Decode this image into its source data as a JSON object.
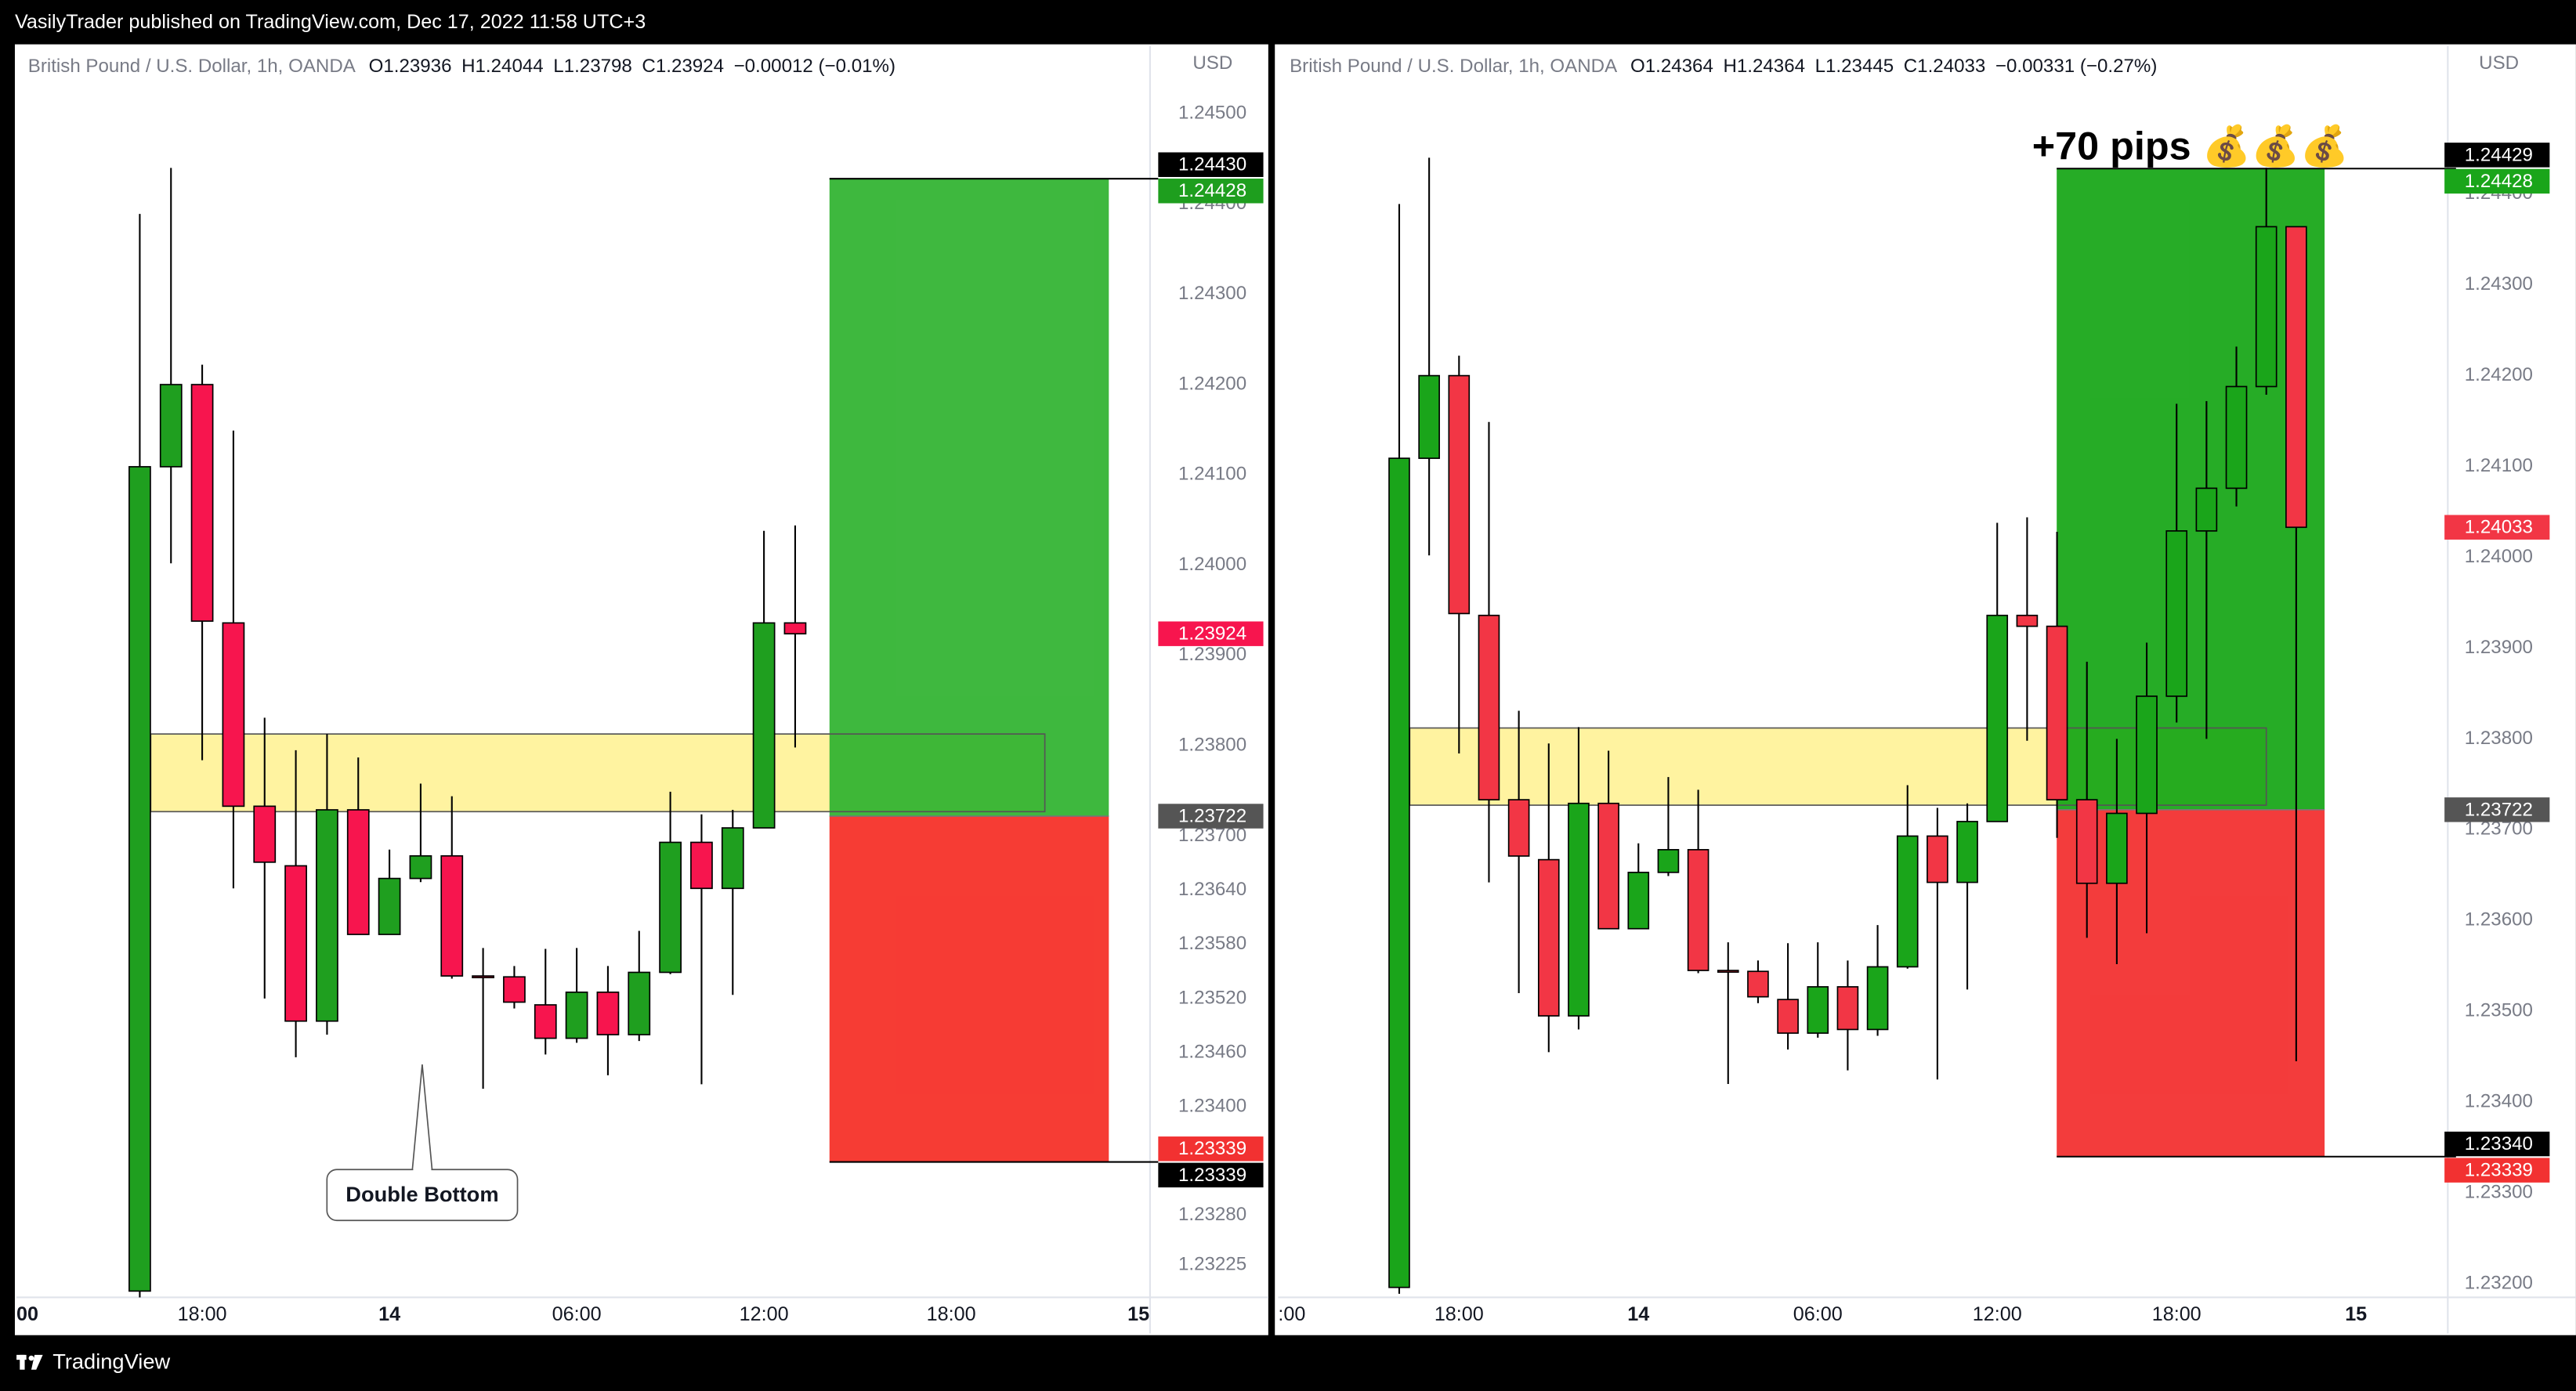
{
  "header": {
    "attribution": "VasilyTrader published on TradingView.com, Dec 17, 2022 11:58 UTC+3"
  },
  "footer": {
    "brand": "TradingView"
  },
  "chart_data": [
    {
      "type": "candlestick",
      "symbol": "British Pound / U.S. Dollar, 1h, OANDA",
      "legend_values": [
        {
          "label": "O",
          "value": "1.23936"
        },
        {
          "label": "H",
          "value": "1.24044"
        },
        {
          "label": "L",
          "value": "1.23798"
        },
        {
          "label": "C",
          "value": "1.23924"
        }
      ],
      "change": "−0.00012 (−0.01%)",
      "currency": "USD",
      "x": [
        16,
        17,
        18,
        19,
        20,
        21,
        22,
        23,
        24,
        25,
        26,
        27,
        28,
        29,
        30,
        31,
        32,
        33,
        34,
        35,
        36,
        37
      ],
      "open": [
        1.23196,
        1.24109,
        1.242,
        1.23936,
        1.23733,
        1.23667,
        1.23495,
        1.23729,
        1.23591,
        1.23653,
        1.23678,
        1.23545,
        1.23544,
        1.23513,
        1.23476,
        1.23527,
        1.2348,
        1.23549,
        1.23693,
        1.23642,
        1.23709,
        1.23936
      ],
      "high": [
        1.24389,
        1.2444,
        1.24222,
        1.24149,
        1.23831,
        1.23795,
        1.23813,
        1.23787,
        1.23685,
        1.23758,
        1.23744,
        1.23576,
        1.23556,
        1.23575,
        1.23576,
        1.23556,
        1.23595,
        1.23749,
        1.23724,
        1.23729,
        1.24038,
        1.24044
      ],
      "low": [
        1.23189,
        1.24002,
        1.23784,
        1.23642,
        1.2352,
        1.23455,
        1.2348,
        1.23591,
        1.23591,
        1.23649,
        1.23542,
        1.2342,
        1.23509,
        1.23458,
        1.23471,
        1.23435,
        1.23473,
        1.23547,
        1.23425,
        1.23524,
        1.23709,
        1.23798
      ],
      "close": [
        1.24109,
        1.242,
        1.23938,
        1.23733,
        1.23671,
        1.23495,
        1.23729,
        1.23591,
        1.23653,
        1.23678,
        1.23545,
        1.23544,
        1.23516,
        1.23476,
        1.23527,
        1.2348,
        1.23549,
        1.23693,
        1.23642,
        1.23709,
        1.23936,
        1.23924
      ],
      "up_color": "#1f9f1f",
      "down_color": "#f7154e",
      "xlim": [
        12.05,
        48.37
      ],
      "xticks": [
        {
          "value": 12,
          "label": "00"
        },
        {
          "value": 18,
          "label": "18:00"
        },
        {
          "value": 24,
          "label": "14"
        },
        {
          "value": 30,
          "label": "06:00"
        },
        {
          "value": 36,
          "label": "12:00"
        },
        {
          "value": 42,
          "label": "18:00"
        },
        {
          "value": 48,
          "label": "15"
        }
      ],
      "ylim": [
        1.23189,
        1.24575
      ],
      "yticks": [
        {
          "value": 1.245,
          "label": "1.24500"
        },
        {
          "value": 1.244,
          "label": "1.24400"
        },
        {
          "value": 1.243,
          "label": "1.24300"
        },
        {
          "value": 1.242,
          "label": "1.24200"
        },
        {
          "value": 1.241,
          "label": "1.24100"
        },
        {
          "value": 1.24,
          "label": "1.24000"
        },
        {
          "value": 1.239,
          "label": "1.23900"
        },
        {
          "value": 1.238,
          "label": "1.23800"
        },
        {
          "value": 1.237,
          "label": "1.23700"
        },
        {
          "value": 1.2364,
          "label": "1.23640"
        },
        {
          "value": 1.2358,
          "label": "1.23580"
        },
        {
          "value": 1.2352,
          "label": "1.23520"
        },
        {
          "value": 1.2346,
          "label": "1.23460"
        },
        {
          "value": 1.234,
          "label": "1.23400"
        },
        {
          "value": 1.2328,
          "label": "1.23280"
        },
        1.23225
      ],
      "zone": {
        "x": [
          16.35,
          45.0
        ],
        "y": [
          1.23727,
          1.23813
        ],
        "color": "#fff3a0"
      },
      "position": {
        "x": [
          38.1,
          47.05
        ],
        "target": 1.24428,
        "entry": 1.23722,
        "stop": 1.23339,
        "profit_color": "#2eb22e",
        "loss_color": "#f53129"
      },
      "price_labels": [
        {
          "value": 1.2443,
          "label": "1.24430",
          "color": "#000000"
        },
        {
          "value": 1.24428,
          "color": "#1e9e1e"
        },
        {
          "value": 1.23924,
          "color": "#f7154e"
        },
        {
          "value": 1.23722,
          "color": "#555555"
        },
        {
          "value": 1.23339,
          "color": "#f23131"
        },
        {
          "value": 1.23339,
          "color": "#000000"
        }
      ],
      "annotation": {
        "text": "Double Bottom",
        "x": 25.05,
        "y": 1.23447
      }
    },
    {
      "type": "candlestick",
      "symbol": "British Pound / U.S. Dollar, 1h, OANDA",
      "legend_values": [
        {
          "label": "O",
          "value": "1.24364"
        },
        {
          "label": "H",
          "value": "1.24364"
        },
        {
          "label": "L",
          "value": "1.23445"
        },
        {
          "label": "C",
          "value": "1.24033"
        }
      ],
      "change": "−0.00331 (−0.27%)",
      "currency": "USD",
      "x": [
        16,
        17,
        18,
        19,
        20,
        21,
        22,
        23,
        24,
        25,
        26,
        27,
        28,
        29,
        30,
        31,
        32,
        33,
        34,
        35,
        36,
        37,
        38,
        39,
        40,
        41,
        42,
        43,
        44,
        45,
        46
      ],
      "open": [
        1.23196,
        1.24109,
        1.242,
        1.23936,
        1.23733,
        1.23667,
        1.23495,
        1.23729,
        1.23591,
        1.23653,
        1.23678,
        1.23545,
        1.23544,
        1.23513,
        1.23476,
        1.23527,
        1.2348,
        1.23549,
        1.23693,
        1.23642,
        1.23709,
        1.23936,
        1.23924,
        1.23733,
        1.23641,
        1.23718,
        1.23847,
        1.24029,
        1.24076,
        1.24188,
        1.24364
      ],
      "high": [
        1.24389,
        1.2444,
        1.24222,
        1.24149,
        1.23831,
        1.23795,
        1.23813,
        1.23787,
        1.23685,
        1.23758,
        1.23744,
        1.23576,
        1.23556,
        1.23575,
        1.23576,
        1.23556,
        1.23595,
        1.23749,
        1.23724,
        1.23729,
        1.24038,
        1.24044,
        1.24028,
        1.23885,
        1.238,
        1.23906,
        1.24169,
        1.24172,
        1.24232,
        1.24429,
        1.24364
      ],
      "low": [
        1.23189,
        1.24002,
        1.23784,
        1.23642,
        1.2352,
        1.23455,
        1.2348,
        1.23591,
        1.23591,
        1.23649,
        1.23542,
        1.2342,
        1.23509,
        1.23458,
        1.23471,
        1.23435,
        1.23473,
        1.23547,
        1.23425,
        1.23524,
        1.23709,
        1.23798,
        1.23691,
        1.23581,
        1.23552,
        1.23586,
        1.23818,
        1.238,
        1.24056,
        1.24179,
        1.23445
      ],
      "close": [
        1.24109,
        1.242,
        1.23938,
        1.23733,
        1.23671,
        1.23495,
        1.23729,
        1.23591,
        1.23653,
        1.23678,
        1.23545,
        1.23544,
        1.23516,
        1.23476,
        1.23527,
        1.2348,
        1.23549,
        1.23693,
        1.23642,
        1.23709,
        1.23936,
        1.23924,
        1.23733,
        1.23641,
        1.23718,
        1.23847,
        1.24029,
        1.24076,
        1.24188,
        1.24364,
        1.24033
      ],
      "up_color": "#1aa51a",
      "down_color": "#f23645",
      "xlim": [
        11.95,
        51.07
      ],
      "xticks": [
        {
          "value": 12,
          "label": ":00"
        },
        {
          "value": 18,
          "label": "18:00"
        },
        {
          "value": 24,
          "label": "14"
        },
        {
          "value": 30,
          "label": "06:00"
        },
        {
          "value": 36,
          "label": "12:00"
        },
        {
          "value": 42,
          "label": "18:00"
        },
        {
          "value": 48,
          "label": "15"
        }
      ],
      "ylim": [
        1.23185,
        1.24563
      ],
      "yticks": [
        {
          "value": 1.244,
          "label": "1.24400"
        },
        {
          "value": 1.243,
          "label": "1.24300"
        },
        {
          "value": 1.242,
          "label": "1.24200"
        },
        {
          "value": 1.241,
          "label": "1.24100"
        },
        {
          "value": 1.24,
          "label": "1.24000"
        },
        {
          "value": 1.239,
          "label": "1.23900"
        },
        {
          "value": 1.238,
          "label": "1.23800"
        },
        {
          "value": 1.237,
          "label": "1.23700"
        },
        {
          "value": 1.236,
          "label": "1.23600"
        },
        {
          "value": 1.235,
          "label": "1.23500"
        },
        {
          "value": 1.234,
          "label": "1.23400"
        },
        {
          "value": 1.233,
          "label": "1.23300"
        },
        {
          "value": 1.232,
          "label": "1.23200"
        }
      ],
      "zone": {
        "x": [
          16.35,
          45.0
        ],
        "y": [
          1.23727,
          1.23812
        ],
        "color": "#fff3a0"
      },
      "position": {
        "x": [
          37.99,
          46.95
        ],
        "target": 1.24428,
        "entry": 1.23722,
        "stop": 1.2334,
        "profit_color": "#14a514",
        "loss_color": "#f23131",
        "label": "+70 pips 💰💰💰"
      },
      "price_labels": [
        {
          "value": 1.24429,
          "color": "#000000"
        },
        {
          "value": 1.24428,
          "color": "#1aa51a"
        },
        {
          "value": 1.24033,
          "color": "#f23645"
        },
        {
          "value": 1.23722,
          "color": "#555555"
        },
        {
          "value": 1.2334,
          "label": "1.23340",
          "color": "#000000"
        },
        {
          "value": 1.23339,
          "color": "#f23131"
        }
      ]
    }
  ]
}
